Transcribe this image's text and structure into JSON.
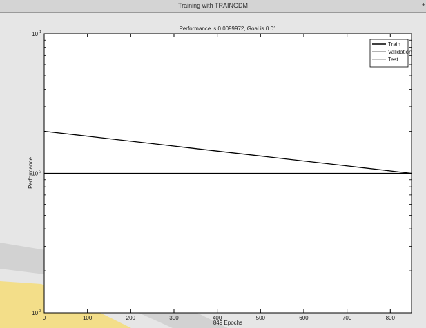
{
  "window": {
    "title": "Training with TRAINGDM",
    "corner_glyph": "+"
  },
  "colors": {
    "window_bg": "#e6e6e6",
    "plot_bg": "#ffffff",
    "train_line": "#000000",
    "goal_line": "#000000",
    "validation_line": "#9a9a9a",
    "test_line": "#b4b4b4",
    "watermark_yellow": "#f5dc78"
  },
  "chart_data": {
    "type": "line",
    "title": "Performance is 0.0099972, Goal is 0.01",
    "xlabel": "849 Epochs",
    "ylabel": "Performance",
    "xscale": "linear",
    "yscale": "log",
    "xlim": [
      0,
      849
    ],
    "ylim": [
      0.001,
      0.1
    ],
    "xticks": [
      0,
      100,
      200,
      300,
      400,
      500,
      600,
      700,
      800
    ],
    "yticks": [
      {
        "value": 0.001,
        "base": "10",
        "exp": "-3"
      },
      {
        "value": 0.01,
        "base": "10",
        "exp": "-2"
      },
      {
        "value": 0.1,
        "base": "10",
        "exp": "-1"
      }
    ],
    "grid": false,
    "legend_position": "top-right",
    "legend": [
      "Train",
      "Validation",
      "Test"
    ],
    "series": [
      {
        "name": "Train",
        "x": [
          0,
          849
        ],
        "y": [
          0.02,
          0.0099972
        ]
      }
    ],
    "goal": {
      "value": 0.01
    }
  }
}
